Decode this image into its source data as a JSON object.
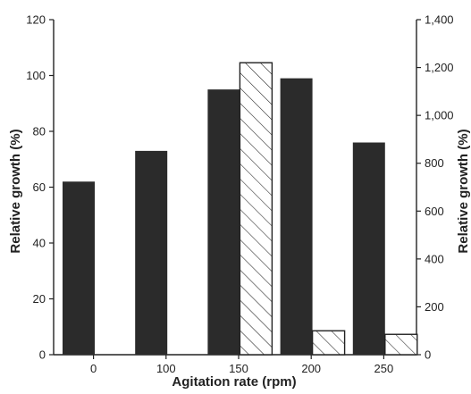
{
  "chart_data": {
    "type": "bar",
    "xlabel": "Agitation rate (rpm)",
    "categories": [
      "0",
      "100",
      "150",
      "200",
      "250"
    ],
    "left_axis": {
      "label": "Relative growth (%)",
      "ylim": [
        0,
        120
      ],
      "ticks": [
        0,
        20,
        40,
        60,
        80,
        100,
        120
      ],
      "tick_labels": [
        "0",
        "20",
        "40",
        "60",
        "80",
        "100",
        "120"
      ]
    },
    "right_axis": {
      "label": "Relative growth (%)",
      "ylim": [
        0,
        1400
      ],
      "ticks": [
        0,
        200,
        400,
        600,
        800,
        1000,
        1200,
        1400
      ],
      "tick_labels": [
        "0",
        "200",
        "400",
        "600",
        "800",
        "1,000",
        "1,200",
        "1,400"
      ]
    },
    "series": [
      {
        "axis": "left",
        "pattern": "solid",
        "color": "#2b2b2b",
        "values": [
          62,
          73,
          95,
          99,
          76
        ]
      },
      {
        "axis": "right",
        "pattern": "hatched",
        "color": "#ffffff",
        "values": [
          null,
          null,
          1220,
          100,
          85
        ]
      }
    ],
    "grid": false,
    "legend": "none"
  }
}
